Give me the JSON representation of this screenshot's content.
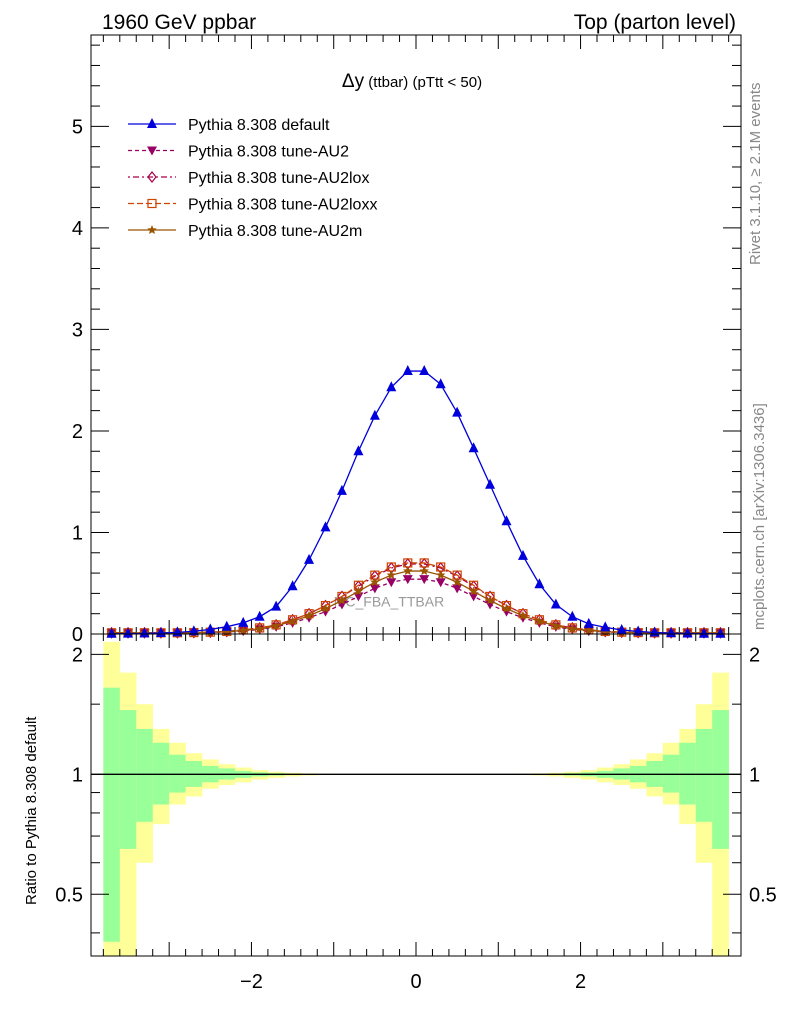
{
  "header": {
    "left_label": "1960 GeV ppbar",
    "right_label": "Top (parton level)"
  },
  "side": {
    "rivet_label": "Rivet 3.1.10, ≥ 2.1M events",
    "source_label": "mcplots.cern.ch [arXiv:1306.3436]"
  },
  "chart_data": [
    {
      "type": "line",
      "title_symbol": "Δy",
      "title_rest": " (ttbar) (pTtt < 50)",
      "watermark": "MC_FBA_TTBAR",
      "xlim": [
        -3.95,
        3.95
      ],
      "ylim": [
        0,
        5.9
      ],
      "x_ticks": [
        -2,
        0,
        2
      ],
      "y_ticks": [
        0,
        1,
        2,
        3,
        4,
        5
      ],
      "x": [
        -3.7,
        -3.5,
        -3.3,
        -3.1,
        -2.9,
        -2.7,
        -2.5,
        -2.3,
        -2.1,
        -1.9,
        -1.7,
        -1.5,
        -1.3,
        -1.1,
        -0.9,
        -0.7,
        -0.5,
        -0.3,
        -0.1,
        0.1,
        0.3,
        0.5,
        0.7,
        0.9,
        1.1,
        1.3,
        1.5,
        1.7,
        1.9,
        2.1,
        2.3,
        2.5,
        2.7,
        2.9,
        3.1,
        3.3,
        3.5,
        3.7
      ],
      "series": [
        {
          "name": "Pythia 8.308 default",
          "color": "#0000dd",
          "marker": "triangle-up",
          "dash": "none",
          "values": [
            0.002,
            0.004,
            0.006,
            0.01,
            0.016,
            0.027,
            0.045,
            0.072,
            0.11,
            0.17,
            0.27,
            0.47,
            0.73,
            1.05,
            1.41,
            1.8,
            2.15,
            2.43,
            2.59,
            2.59,
            2.46,
            2.18,
            1.83,
            1.47,
            1.11,
            0.77,
            0.49,
            0.29,
            0.17,
            0.1,
            0.065,
            0.04,
            0.025,
            0.015,
            0.009,
            0.005,
            0.003,
            0.002
          ]
        },
        {
          "name": "Pythia 8.308 tune-AU2",
          "color": "#990066",
          "marker": "triangle-down",
          "dash": "4,3",
          "values": [
            0.01,
            0.01,
            0.01,
            0.01,
            0.01,
            0.012,
            0.015,
            0.02,
            0.03,
            0.045,
            0.07,
            0.11,
            0.16,
            0.22,
            0.29,
            0.37,
            0.45,
            0.51,
            0.54,
            0.54,
            0.51,
            0.45,
            0.37,
            0.29,
            0.22,
            0.16,
            0.11,
            0.07,
            0.045,
            0.03,
            0.02,
            0.015,
            0.012,
            0.01,
            0.01,
            0.01,
            0.01,
            0.01
          ]
        },
        {
          "name": "Pythia 8.308 tune-AU2lox",
          "color": "#aa0044",
          "marker": "diamond-open",
          "dash": "2,3,6,3",
          "values": [
            0.012,
            0.012,
            0.012,
            0.012,
            0.012,
            0.014,
            0.018,
            0.025,
            0.04,
            0.06,
            0.09,
            0.14,
            0.2,
            0.28,
            0.37,
            0.47,
            0.57,
            0.65,
            0.69,
            0.69,
            0.65,
            0.57,
            0.47,
            0.37,
            0.28,
            0.2,
            0.14,
            0.09,
            0.06,
            0.04,
            0.025,
            0.018,
            0.014,
            0.012,
            0.012,
            0.012,
            0.012,
            0.012
          ]
        },
        {
          "name": "Pythia 8.308 tune-AU2loxx",
          "color": "#cc4400",
          "marker": "square-open",
          "dash": "6,3",
          "values": [
            0.012,
            0.012,
            0.012,
            0.012,
            0.012,
            0.014,
            0.018,
            0.025,
            0.04,
            0.06,
            0.09,
            0.14,
            0.2,
            0.28,
            0.37,
            0.48,
            0.58,
            0.66,
            0.7,
            0.7,
            0.66,
            0.58,
            0.48,
            0.37,
            0.28,
            0.2,
            0.14,
            0.09,
            0.06,
            0.04,
            0.025,
            0.018,
            0.014,
            0.012,
            0.012,
            0.012,
            0.012,
            0.012
          ]
        },
        {
          "name": "Pythia 8.308 tune-AU2m",
          "color": "#995500",
          "marker": "star",
          "dash": "none",
          "values": [
            0.011,
            0.011,
            0.011,
            0.011,
            0.011,
            0.013,
            0.016,
            0.022,
            0.035,
            0.05,
            0.08,
            0.125,
            0.18,
            0.25,
            0.33,
            0.42,
            0.51,
            0.58,
            0.62,
            0.62,
            0.58,
            0.51,
            0.42,
            0.33,
            0.25,
            0.18,
            0.125,
            0.08,
            0.05,
            0.035,
            0.022,
            0.016,
            0.013,
            0.011,
            0.011,
            0.011,
            0.011,
            0.011
          ]
        }
      ],
      "legend_position": "top-left"
    },
    {
      "type": "area",
      "ylabel": "Ratio to Pythia 8.308 default",
      "xlim": [
        -3.95,
        3.95
      ],
      "ylim": [
        0.35,
        2.25
      ],
      "x_ticks": [
        -2,
        0,
        2
      ],
      "y_ticks": [
        0.5,
        1,
        2
      ],
      "y_tick_labels": [
        "0.5",
        "1",
        "2"
      ],
      "ratio_line": 1,
      "band_colors": {
        "outer": "#ffff99",
        "inner": "#99ff99",
        "line": "#000000"
      },
      "bins_x_low": [
        -3.8,
        -3.6,
        -3.4,
        -3.2,
        -3.0,
        -2.8,
        -2.6,
        -2.4,
        -2.2,
        -2.0,
        -1.8,
        -1.6,
        -1.4,
        -1.2,
        -1.0,
        1.0,
        1.2,
        1.4,
        1.6,
        1.8,
        2.0,
        2.2,
        2.4,
        2.6,
        2.8,
        3.0,
        3.2,
        3.4,
        3.6
      ],
      "bins_width": 0.2,
      "inner_upper": [
        1.65,
        1.45,
        1.3,
        1.2,
        1.12,
        1.08,
        1.05,
        1.035,
        1.02,
        1.012,
        1.007,
        1.004,
        1.002,
        1.001,
        1.0005,
        1.0005,
        1.001,
        1.002,
        1.004,
        1.007,
        1.012,
        1.02,
        1.035,
        1.05,
        1.08,
        1.12,
        1.2,
        1.3,
        1.45
      ],
      "inner_lower": [
        0.38,
        0.65,
        0.76,
        0.84,
        0.9,
        0.93,
        0.955,
        0.97,
        0.98,
        0.988,
        0.993,
        0.996,
        0.998,
        0.999,
        0.9995,
        0.9995,
        0.999,
        0.998,
        0.996,
        0.993,
        0.988,
        0.98,
        0.97,
        0.955,
        0.93,
        0.9,
        0.84,
        0.76,
        0.65
      ],
      "outer_upper": [
        2.15,
        1.8,
        1.5,
        1.3,
        1.2,
        1.13,
        1.09,
        1.06,
        1.04,
        1.025,
        1.015,
        1.009,
        1.005,
        1.003,
        1.001,
        1.001,
        1.003,
        1.005,
        1.009,
        1.015,
        1.025,
        1.04,
        1.06,
        1.09,
        1.13,
        1.2,
        1.3,
        1.5,
        1.8
      ],
      "outer_lower": [
        0.35,
        0.35,
        0.6,
        0.75,
        0.84,
        0.88,
        0.92,
        0.94,
        0.955,
        0.97,
        0.98,
        0.988,
        0.993,
        0.997,
        0.999,
        0.999,
        0.997,
        0.993,
        0.988,
        0.98,
        0.97,
        0.955,
        0.94,
        0.92,
        0.88,
        0.84,
        0.75,
        0.6,
        0.35
      ]
    }
  ]
}
